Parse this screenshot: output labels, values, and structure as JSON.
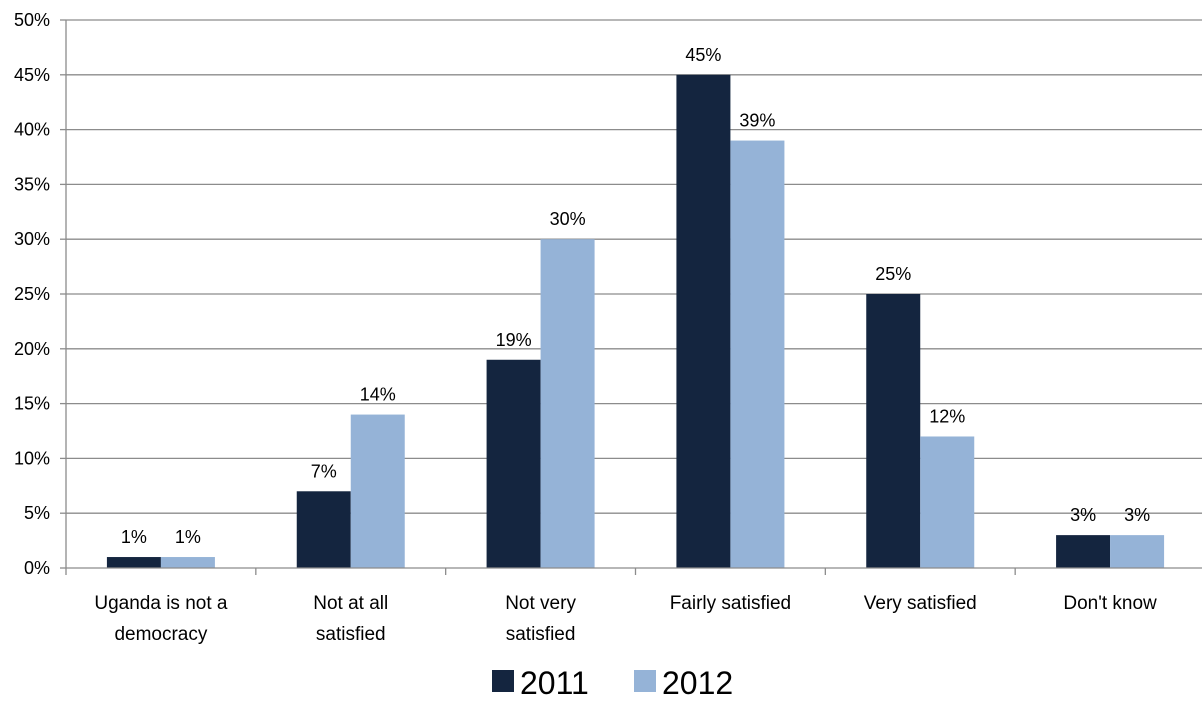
{
  "chart_data": {
    "type": "bar",
    "title": "",
    "xlabel": "",
    "ylabel": "",
    "ylim": [
      0,
      50
    ],
    "y_ticks": [
      "0%",
      "5%",
      "10%",
      "15%",
      "20%",
      "25%",
      "30%",
      "35%",
      "40%",
      "45%",
      "50%"
    ],
    "categories": [
      [
        "Uganda is not a",
        "democracy"
      ],
      [
        "Not at all",
        "satisfied"
      ],
      [
        "Not very",
        "satisfied"
      ],
      [
        "Fairly satisfied"
      ],
      [
        "Very satisfied"
      ],
      [
        "Don't know"
      ]
    ],
    "series": [
      {
        "name": "2011",
        "color": "#14253f",
        "values": [
          1,
          7,
          19,
          45,
          25,
          3
        ],
        "labels": [
          "1%",
          "7%",
          "19%",
          "45%",
          "25%",
          "3%"
        ]
      },
      {
        "name": "2012",
        "color": "#95b3d7",
        "values": [
          1,
          14,
          30,
          39,
          12,
          3
        ],
        "labels": [
          "1%",
          "14%",
          "30%",
          "39%",
          "12%",
          "3%"
        ]
      }
    ],
    "grid": true,
    "legend_position": "bottom"
  }
}
